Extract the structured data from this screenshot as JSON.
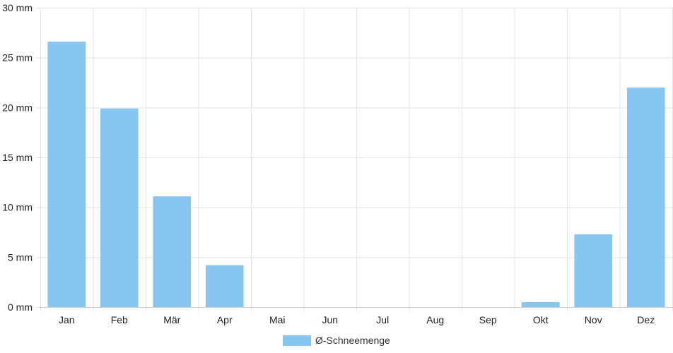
{
  "chart_data": {
    "type": "bar",
    "categories": [
      "Jan",
      "Feb",
      "Mär",
      "Apr",
      "Mai",
      "Jun",
      "Jul",
      "Aug",
      "Sep",
      "Okt",
      "Nov",
      "Dez"
    ],
    "series": [
      {
        "name": "Ø-Schneemenge",
        "values": [
          26.6,
          19.9,
          11.1,
          4.2,
          0,
          0,
          0,
          0,
          0,
          0.5,
          7.3,
          22.0
        ]
      }
    ],
    "y_unit": "mm",
    "ylim": [
      0,
      30
    ],
    "y_ticks": [
      0,
      5,
      10,
      15,
      20,
      25,
      30
    ],
    "grid": true,
    "legend_position": "bottom",
    "colors": {
      "bar": "#88c6f2",
      "grid": "#e3e3e3",
      "axis": "#cfcfcf"
    }
  }
}
